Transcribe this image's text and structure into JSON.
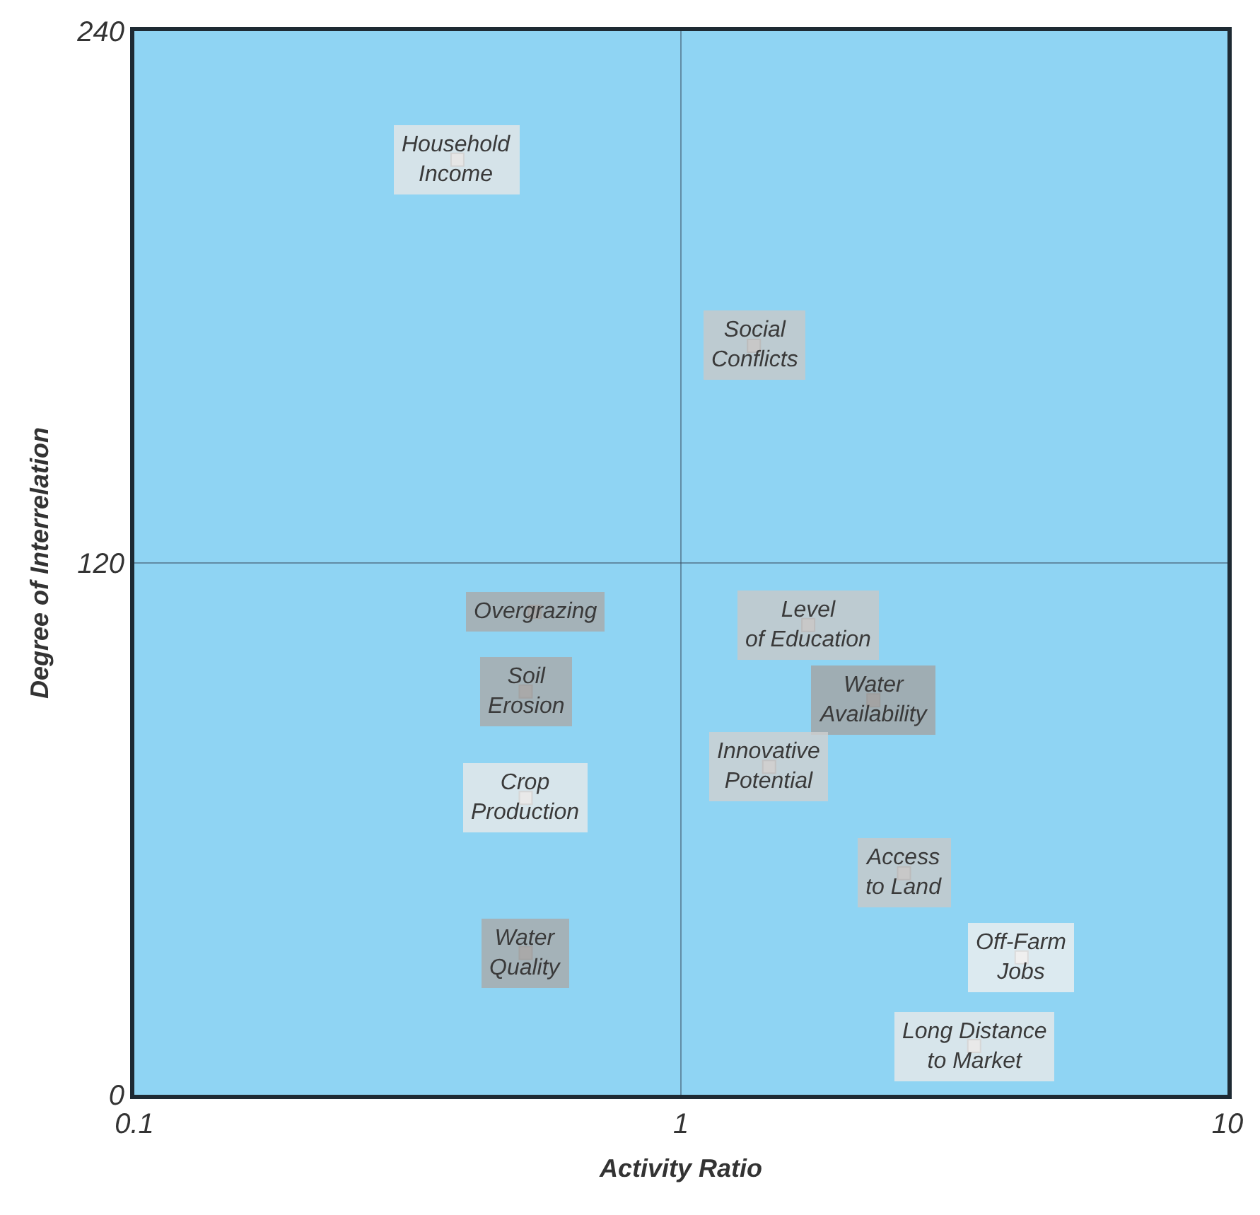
{
  "chart_data": {
    "type": "scatter",
    "xlabel": "Activity Ratio",
    "ylabel": "Degree of Interrelation",
    "x": [
      0.39,
      1.36,
      0.54,
      1.71,
      0.52,
      2.25,
      1.45,
      0.52,
      2.56,
      0.52,
      4.2,
      3.44
    ],
    "values": [
      211,
      169,
      109,
      106,
      91,
      89,
      74,
      67,
      50,
      32,
      31,
      11
    ],
    "value_labels": [
      "Household\nIncome",
      "Social\nConflicts",
      "Overgrazing",
      "Level\nof Education",
      "Soil\nErosion",
      "Water\nAvailability",
      "Innovative\nPotential",
      "Crop\nProduction",
      "Access\nto Land",
      "Water\nQuality",
      "Off-Farm\nJobs",
      "Long Distance\nto Market"
    ],
    "colors": [
      "#e6e6e6",
      "#c8c8c8",
      "#a9a9a9",
      "#c8c8c8",
      "#a9a9a9",
      "#a3a3a3",
      "#cfcfcf",
      "#e8e8e8",
      "#c8c8c8",
      "#a9a9a9",
      "#efefef",
      "#e8e8e8"
    ],
    "log": "x",
    "xlim": [
      0.1,
      10
    ],
    "xticks": [
      0.1,
      1,
      10
    ],
    "ylim": [
      0,
      240
    ],
    "yticks": [
      0,
      120,
      240
    ],
    "grid": true,
    "marker": "square"
  }
}
